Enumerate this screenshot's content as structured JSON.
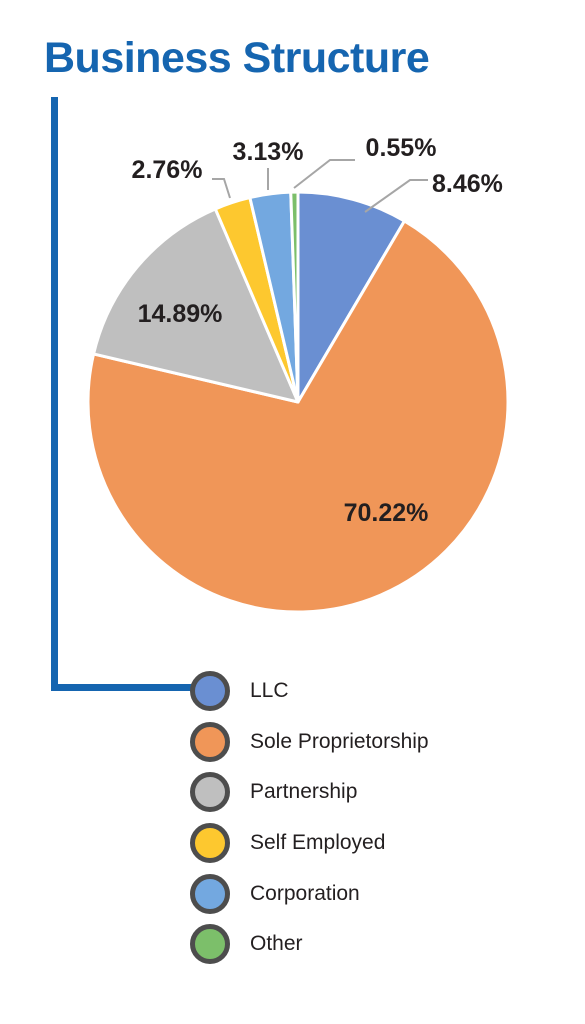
{
  "title": "Business Structure",
  "chart_data": {
    "type": "pie",
    "title": "Business Structure",
    "slices": [
      {
        "name": "LLC",
        "value": 8.46,
        "label": "8.46%",
        "color": "#6a8fd2"
      },
      {
        "name": "Sole Proprietorship",
        "value": 70.22,
        "label": "70.22%",
        "color": "#f09658"
      },
      {
        "name": "Partnership",
        "value": 14.89,
        "label": "14.89%",
        "color": "#bfbfbf"
      },
      {
        "name": "Self Employed",
        "value": 2.76,
        "label": "2.76%",
        "color": "#fdc82f"
      },
      {
        "name": "Corporation",
        "value": 3.13,
        "label": "3.13%",
        "color": "#73a8e0"
      },
      {
        "name": "Other",
        "value": 0.55,
        "label": "0.55%",
        "color": "#7cbf6a"
      }
    ],
    "legend_position": "bottom-right",
    "start_angle": "12 o'clock, clockwise"
  },
  "colors": {
    "title": "#1565b0",
    "connector": "#1565b0",
    "legend_border": "#4d4d4d",
    "label_text": "#231f20",
    "leader_line": "#a6a6a6"
  }
}
